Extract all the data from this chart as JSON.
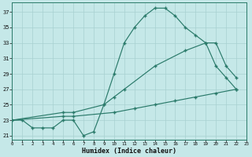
{
  "xlabel": "Humidex (Indice chaleur)",
  "bg_color": "#c5e8e8",
  "line_color": "#2a7a6a",
  "grid_color": "#a8d0d0",
  "xlim": [
    0,
    23
  ],
  "ylim": [
    20.5,
    38.2
  ],
  "xticks": [
    0,
    1,
    2,
    3,
    4,
    5,
    6,
    7,
    8,
    9,
    10,
    11,
    12,
    13,
    14,
    15,
    16,
    17,
    18,
    19,
    20,
    21,
    22,
    23
  ],
  "yticks": [
    21,
    23,
    25,
    27,
    29,
    31,
    33,
    35,
    37
  ],
  "curve1_x": [
    0,
    1,
    2,
    3,
    4,
    5,
    6,
    7,
    8,
    9,
    10,
    11,
    12,
    13,
    14,
    15,
    16,
    17,
    18,
    19,
    20,
    21,
    22
  ],
  "curve1_y": [
    23,
    23,
    22,
    22,
    22,
    23,
    23,
    21,
    21.5,
    25,
    29,
    33,
    35,
    36.5,
    37.5,
    37.5,
    36.5,
    35,
    34,
    33,
    30,
    28.5,
    27
  ],
  "curve2_x": [
    0,
    5,
    6,
    9,
    10,
    11,
    14,
    17,
    19,
    20,
    21,
    22
  ],
  "curve2_y": [
    23,
    24,
    24,
    25,
    26,
    27,
    30,
    32,
    33,
    33,
    30,
    28.5
  ],
  "curve3_x": [
    0,
    5,
    6,
    10,
    12,
    14,
    16,
    18,
    20,
    22
  ],
  "curve3_y": [
    23,
    23.5,
    23.5,
    24,
    24.5,
    25,
    25.5,
    26,
    26.5,
    27
  ]
}
